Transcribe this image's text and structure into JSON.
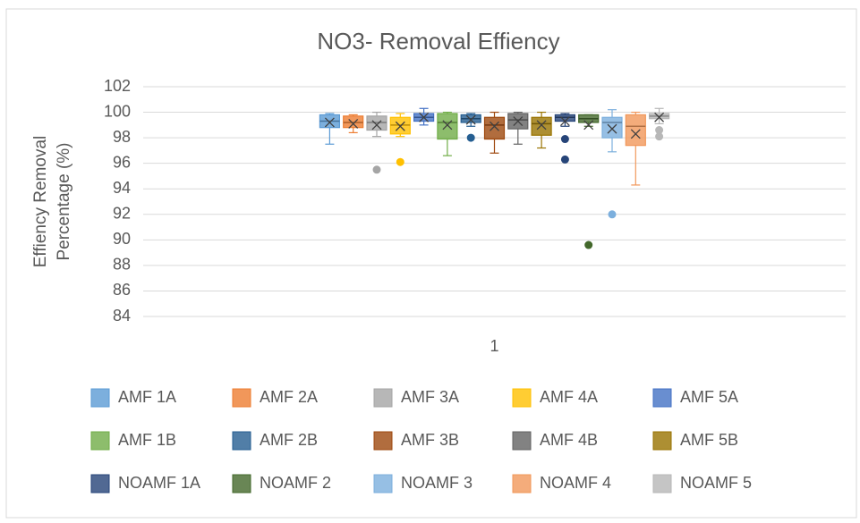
{
  "chart_data": {
    "type": "box",
    "title": "NO3- Removal Effiency",
    "y_label": [
      "Effiency Removal",
      "Percentage (%)"
    ],
    "categories": [
      "1"
    ],
    "ylim": [
      84,
      102
    ],
    "yticks": [
      84,
      86,
      88,
      90,
      92,
      94,
      96,
      98,
      100,
      102
    ],
    "grid": true,
    "legend": "bottom",
    "series": [
      {
        "name": "AMF 1A",
        "color": "#5B9BD5",
        "min": 97.5,
        "q1": 98.8,
        "median": 99.3,
        "q3": 99.8,
        "max": 99.9,
        "mean": 99.2,
        "outliers": []
      },
      {
        "name": "AMF 2A",
        "color": "#ED7D31",
        "min": 98.4,
        "q1": 98.8,
        "median": 99.2,
        "q3": 99.7,
        "max": 99.8,
        "mean": 99.1,
        "outliers": []
      },
      {
        "name": "AMF 3A",
        "color": "#A5A5A5",
        "min": 98.1,
        "q1": 98.6,
        "median": 99.2,
        "q3": 99.7,
        "max": 100,
        "mean": 99.0,
        "outliers": [
          95.5
        ]
      },
      {
        "name": "AMF 4A",
        "color": "#FFC000",
        "min": 98.1,
        "q1": 98.3,
        "median": 99.0,
        "q3": 99.6,
        "max": 99.9,
        "mean": 98.9,
        "outliers": [
          96.1
        ]
      },
      {
        "name": "AMF 5A",
        "color": "#4472C4",
        "min": 99.0,
        "q1": 99.3,
        "median": 99.6,
        "q3": 99.9,
        "max": 100.3,
        "mean": 99.6,
        "outliers": []
      },
      {
        "name": "AMF 1B",
        "color": "#70AD47",
        "min": 96.6,
        "q1": 97.9,
        "median": 99.2,
        "q3": 99.9,
        "max": 100,
        "mean": 99.0,
        "outliers": []
      },
      {
        "name": "AMF 2B",
        "color": "#255E91",
        "min": 98.9,
        "q1": 99.2,
        "median": 99.5,
        "q3": 99.8,
        "max": 99.9,
        "mean": 99.4,
        "outliers": [
          98.0
        ]
      },
      {
        "name": "AMF 3B",
        "color": "#9E480E",
        "min": 96.8,
        "q1": 97.9,
        "median": 99.0,
        "q3": 99.6,
        "max": 100,
        "mean": 98.9,
        "outliers": []
      },
      {
        "name": "AMF 4B",
        "color": "#636363",
        "min": 97.5,
        "q1": 98.7,
        "median": 99.4,
        "q3": 99.9,
        "max": 100,
        "mean": 99.3,
        "outliers": []
      },
      {
        "name": "AMF 5B",
        "color": "#997300",
        "min": 97.2,
        "q1": 98.2,
        "median": 99.1,
        "q3": 99.6,
        "max": 100,
        "mean": 99.0,
        "outliers": []
      },
      {
        "name": "NOAMF 1A",
        "color": "#264478",
        "min": 98.9,
        "q1": 99.3,
        "median": 99.6,
        "q3": 99.8,
        "max": 99.9,
        "mean": 99.3,
        "outliers": [
          97.9,
          96.3
        ]
      },
      {
        "name": "NOAMF 2",
        "color": "#43682B",
        "min": 98.9,
        "q1": 99.2,
        "median": 99.5,
        "q3": 99.8,
        "max": 99.8,
        "mean": 99.0,
        "outliers": [
          89.6
        ]
      },
      {
        "name": "NOAMF 3",
        "color": "#7CAFDD",
        "min": 96.9,
        "q1": 98.0,
        "median": 99.2,
        "q3": 99.6,
        "max": 100.2,
        "mean": 98.7,
        "outliers": [
          92.0
        ]
      },
      {
        "name": "NOAMF 4",
        "color": "#F1975A",
        "min": 94.3,
        "q1": 97.4,
        "median": 98.9,
        "q3": 99.8,
        "max": 100,
        "mean": 98.3,
        "outliers": []
      },
      {
        "name": "NOAMF 5",
        "color": "#B7B7B7",
        "min": 99.1,
        "q1": 99.5,
        "median": 99.7,
        "q3": 99.9,
        "max": 100.3,
        "mean": 99.6,
        "outliers": [
          98.6,
          98.1
        ]
      }
    ]
  }
}
